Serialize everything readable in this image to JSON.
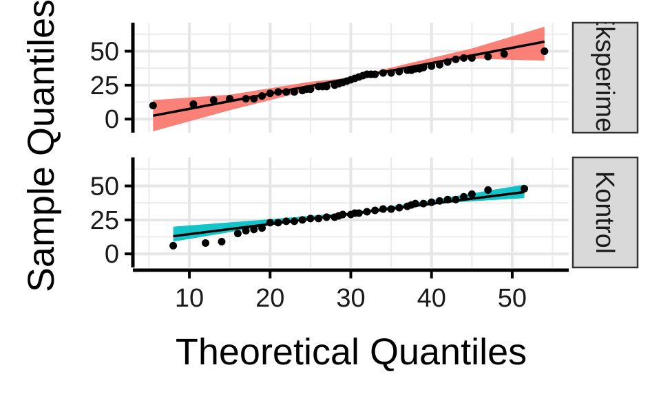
{
  "chart_data": {
    "type": "scatter",
    "subtype": "qq-plot with fitted line and confidence band, faceted",
    "xlabel": "Theoretical Quantiles",
    "ylabel": "Sample Quantiles",
    "xlim": [
      3,
      57
    ],
    "ylim": [
      -10,
      71
    ],
    "x_ticks": [
      10,
      20,
      30,
      40,
      50
    ],
    "y_ticks": [
      0,
      25,
      50
    ],
    "grid": true,
    "legend": "none",
    "facets": [
      {
        "label": "Eksperimen",
        "color": "#F8766D",
        "line": {
          "x": [
            5.5,
            54
          ],
          "y": [
            2.5,
            57
          ]
        },
        "band": {
          "x": [
            5.5,
            15,
            25,
            30,
            35,
            45,
            54
          ],
          "lower": [
            -9,
            6.5,
            21.5,
            29.5,
            35,
            44.5,
            43
          ],
          "upper": [
            14,
            18,
            27.5,
            30.5,
            38,
            52,
            68
          ]
        },
        "points": {
          "x": [
            5.5,
            10.5,
            13,
            15,
            17,
            18,
            19,
            20,
            21,
            22,
            23,
            24,
            24.5,
            25,
            26,
            26.5,
            27,
            28,
            28.5,
            29,
            29.5,
            30,
            30.5,
            31,
            31.5,
            32,
            32.5,
            33,
            34,
            35,
            36,
            37,
            37.5,
            38,
            38.5,
            39,
            40,
            41,
            42,
            43,
            44,
            45,
            47,
            49,
            54
          ],
          "y": [
            10,
            11,
            14,
            15,
            15,
            15,
            17,
            19,
            20,
            20,
            20,
            21,
            22,
            22,
            24,
            24,
            24,
            25,
            26,
            27,
            28,
            29,
            30,
            31,
            32,
            33,
            33,
            33,
            34,
            34,
            35,
            36,
            36,
            37,
            37,
            38,
            39,
            40,
            42,
            44,
            45,
            45,
            46,
            48,
            50
          ]
        }
      },
      {
        "label": "Kontrol",
        "color": "#00BFC4",
        "line": {
          "x": [
            8,
            51.5
          ],
          "y": [
            13,
            45.5
          ]
        },
        "band": {
          "x": [
            8,
            20,
            30,
            40,
            51.5
          ],
          "lower": [
            9,
            21,
            29,
            37,
            41
          ],
          "upper": [
            20,
            25.5,
            30.5,
            39.5,
            51
          ]
        },
        "points": {
          "x": [
            8,
            12,
            14,
            16,
            17,
            18,
            19,
            20,
            21,
            22,
            23,
            24,
            25,
            26,
            27,
            28,
            28.5,
            29,
            30,
            30.5,
            31,
            32,
            33,
            34,
            35,
            36,
            37,
            37.5,
            38,
            39,
            40,
            41,
            42,
            43,
            44,
            45,
            47,
            51.5
          ],
          "y": [
            6,
            8,
            9,
            15,
            17,
            18,
            19,
            23,
            23,
            24,
            24,
            25,
            26,
            26,
            27,
            27,
            28,
            29,
            29,
            30,
            30,
            31,
            32,
            33,
            33,
            34,
            35,
            36,
            37,
            37,
            38,
            39,
            40,
            40,
            42,
            44,
            47,
            48
          ]
        }
      }
    ]
  }
}
